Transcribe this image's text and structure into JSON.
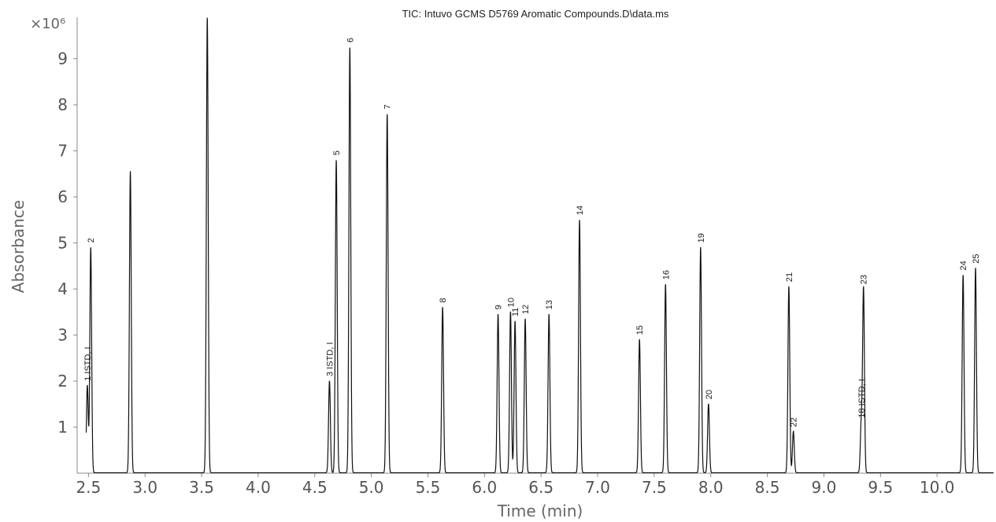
{
  "chart_data": {
    "type": "line",
    "title": "TIC: Intuvo GCMS D5769 Aromatic Compounds.D\\data.ms",
    "xlabel": "Time (min)",
    "ylabel": "Absorbance",
    "y_scale_label": "×10⁶",
    "xlim": [
      2.4,
      10.5
    ],
    "ylim": [
      0,
      9.9
    ],
    "x_ticks": [
      "2.5",
      "3.0",
      "3.5",
      "4.0",
      "4.5",
      "5.0",
      "5.5",
      "6.0",
      "6.5",
      "7.0",
      "7.5",
      "8.0",
      "8.5",
      "9.0",
      "9.5",
      "10.0"
    ],
    "y_ticks": [
      "1",
      "2",
      "3",
      "4",
      "5",
      "6",
      "7",
      "8",
      "9"
    ],
    "grid": false,
    "peaks": [
      {
        "label": "1 ISTD, I",
        "x": 2.49,
        "y": 1.9
      },
      {
        "label": "2",
        "x": 2.52,
        "y": 4.9
      },
      {
        "label": "",
        "x": 2.87,
        "y": 6.55
      },
      {
        "label": "",
        "x": 3.55,
        "y": 9.9
      },
      {
        "label": "3 ISTD, I",
        "x": 4.63,
        "y": 2.0
      },
      {
        "label": "5",
        "x": 4.69,
        "y": 6.8
      },
      {
        "label": "6",
        "x": 4.81,
        "y": 9.25
      },
      {
        "label": "7",
        "x": 5.14,
        "y": 7.8
      },
      {
        "label": "8",
        "x": 5.63,
        "y": 3.6
      },
      {
        "label": "9",
        "x": 6.12,
        "y": 3.45
      },
      {
        "label": "10",
        "x": 6.23,
        "y": 3.5
      },
      {
        "label": "11",
        "x": 6.27,
        "y": 3.3
      },
      {
        "label": "12",
        "x": 6.36,
        "y": 3.35
      },
      {
        "label": "13",
        "x": 6.57,
        "y": 3.45
      },
      {
        "label": "14",
        "x": 6.84,
        "y": 5.5
      },
      {
        "label": "15",
        "x": 7.37,
        "y": 2.9
      },
      {
        "label": "16",
        "x": 7.6,
        "y": 4.1
      },
      {
        "label": "19",
        "x": 7.91,
        "y": 4.9
      },
      {
        "label": "20",
        "x": 7.98,
        "y": 1.5
      },
      {
        "label": "21",
        "x": 8.69,
        "y": 4.05
      },
      {
        "label": "22",
        "x": 8.73,
        "y": 0.9
      },
      {
        "label": "18 ISTD, I",
        "x": 9.33,
        "y": 1.1
      },
      {
        "label": "23",
        "x": 9.35,
        "y": 4.0
      },
      {
        "label": "24",
        "x": 10.23,
        "y": 4.3
      },
      {
        "label": "25",
        "x": 10.34,
        "y": 4.45
      }
    ]
  }
}
